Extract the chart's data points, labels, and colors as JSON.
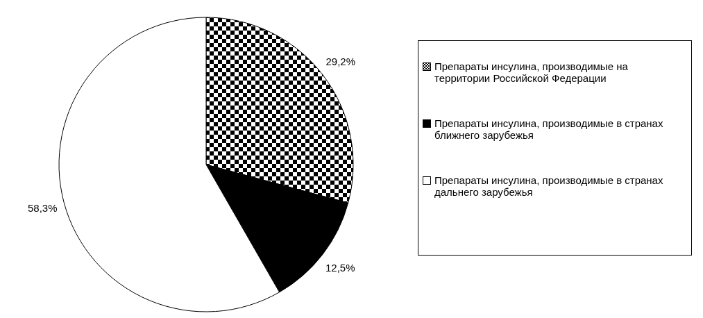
{
  "chart_data": {
    "type": "pie",
    "categories": [
      "Препараты инсулина, производимые на территории Российской Федерации",
      "Препараты инсулина, производимые в странах ближнего зарубежья",
      "Препараты инсулина, производимые в странах дальнего зарубежья"
    ],
    "values": [
      29.2,
      12.5,
      58.3
    ],
    "colors": [
      "#000000",
      "#000000",
      "#ffffff"
    ],
    "value_labels": [
      "29,2%",
      "12,5%",
      "58,3%"
    ],
    "legend": "right"
  }
}
